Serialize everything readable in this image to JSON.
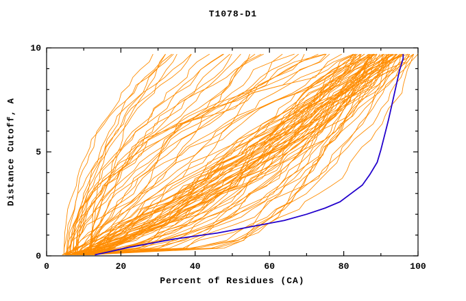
{
  "chart_data": {
    "type": "line",
    "title": "T1078-D1",
    "xlabel": "Percent of Residues (CA)",
    "ylabel": "Distance Cutoff, A",
    "xlim": [
      0,
      100
    ],
    "ylim": [
      0,
      10
    ],
    "x_major_ticks": [
      0,
      20,
      40,
      60,
      80,
      100
    ],
    "x_minor_ticks": [
      10,
      30,
      50,
      70,
      90
    ],
    "y_major_ticks": [
      0,
      5,
      10
    ],
    "y_minor_ticks": [
      1,
      2,
      3,
      4,
      6,
      7,
      8,
      9
    ],
    "grid": false,
    "legend": "none",
    "axis_color": "#000000",
    "background_color": "#ffffff",
    "series": [
      {
        "name": "ensemble-models",
        "style": "ensemble",
        "color": "#ff8c00",
        "count": 96,
        "seed": 20231078,
        "start_x_range": [
          4,
          13
        ],
        "top_y": 9.7,
        "good_fraction": 0.68,
        "good_top_x_range": [
          82,
          100
        ],
        "poor_top_x_range": [
          28,
          82
        ],
        "good_exponent_range": [
          0.3,
          1.2
        ],
        "poor_exponent_range": [
          0.9,
          2.4
        ],
        "jitter": 1.4
      },
      {
        "name": "highlighted-model",
        "style": "line",
        "color": "#2200cc",
        "points": [
          [
            13,
            0.05
          ],
          [
            17,
            0.2
          ],
          [
            22,
            0.4
          ],
          [
            28,
            0.6
          ],
          [
            34,
            0.8
          ],
          [
            40,
            0.95
          ],
          [
            46,
            1.1
          ],
          [
            52,
            1.3
          ],
          [
            58,
            1.5
          ],
          [
            64,
            1.7
          ],
          [
            70,
            2.0
          ],
          [
            75,
            2.3
          ],
          [
            79,
            2.6
          ],
          [
            82,
            3.0
          ],
          [
            85,
            3.4
          ],
          [
            87,
            3.9
          ],
          [
            89,
            4.5
          ],
          [
            90,
            5.1
          ],
          [
            91,
            5.8
          ],
          [
            92,
            6.5
          ],
          [
            93,
            7.3
          ],
          [
            94,
            8.1
          ],
          [
            95,
            8.9
          ],
          [
            96,
            9.5
          ],
          [
            96,
            9.7
          ]
        ]
      }
    ]
  }
}
